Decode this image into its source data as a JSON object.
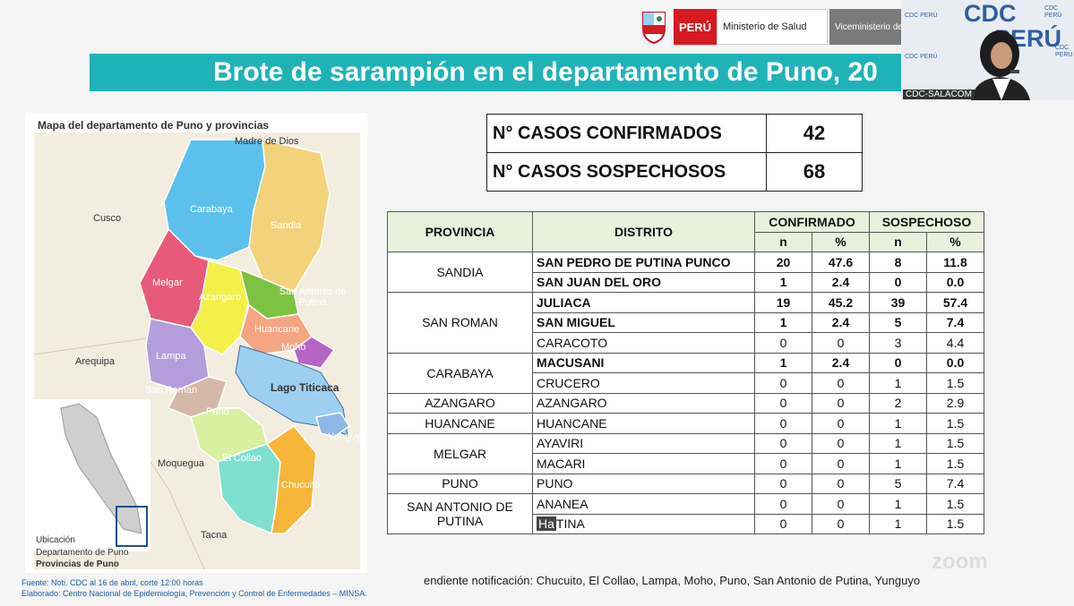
{
  "header": {
    "peru_label": "PERÚ",
    "ministry_label": "Ministerio de Salud",
    "vice_label": "Viceministerio de Salud Pública",
    "title": "Brote de sarampión en el departamento de Puno, 20"
  },
  "video": {
    "logo_line1": "CDC",
    "logo_line2": "PERÚ",
    "small_logo": "CDC PERÚ",
    "label": "CDC-SALACOM"
  },
  "map": {
    "title": "Mapa del departamento de Puno y provincias",
    "neighbors": [
      "Madre de Dios",
      "Cusco",
      "Arequipa",
      "Moquegua",
      "Tacna"
    ],
    "provinces": [
      "Carabaya",
      "Sandia",
      "Melgar",
      "Azangaro",
      "San Antonio de Putina",
      "Huancane",
      "Moho",
      "Lampa",
      "San Roman",
      "Puno",
      "El Collao",
      "Chucuito",
      "Yunguyo"
    ],
    "lake": "Lago Titicaca",
    "inset_caption": [
      "Ubicación",
      "Departamento de Puno"
    ],
    "inset_caption_bold": "Provincias de Puno",
    "colors": {
      "carabaya": "#5bc0eb",
      "sandia": "#f2d27a",
      "melgar": "#e85a7a",
      "azangaro": "#f3f04a",
      "putina": "#7dc242",
      "huancane": "#f4a582",
      "moho": "#b565c4",
      "lampa": "#b39ddb",
      "sanroman": "#d4b8a8",
      "puno": "#d9f0a3",
      "elcollao": "#7fe0d0",
      "chucuito": "#f7b63a",
      "yunguyo": "#8fb8e8",
      "lake": "#9ecff0"
    }
  },
  "counts": {
    "confirmed_label": "N° CASOS CONFIRMADOS",
    "confirmed_value": "42",
    "suspected_label": "N° CASOS SOSPECHOSOS",
    "suspected_value": "68"
  },
  "table": {
    "headers": {
      "provincia": "PROVINCIA",
      "distrito": "DISTRITO",
      "confirmado": "CONFIRMADO",
      "sospechoso": "SOSPECHOSO",
      "n": "n",
      "pct": "%"
    },
    "groups": [
      {
        "provincia": "SANDIA",
        "rows": [
          {
            "distrito": "SAN PEDRO DE PUTINA PUNCO",
            "cn": "20",
            "cp": "47.6",
            "sn": "8",
            "sp": "11.8",
            "bold": true
          },
          {
            "distrito": "SAN JUAN DEL ORO",
            "cn": "1",
            "cp": "2.4",
            "sn": "0",
            "sp": "0.0",
            "bold": true
          }
        ]
      },
      {
        "provincia": "SAN ROMAN",
        "rows": [
          {
            "distrito": "JULIACA",
            "cn": "19",
            "cp": "45.2",
            "sn": "39",
            "sp": "57.4",
            "bold": true
          },
          {
            "distrito": "SAN MIGUEL",
            "cn": "1",
            "cp": "2.4",
            "sn": "5",
            "sp": "7.4",
            "bold": true
          },
          {
            "distrito": "CARACOTO",
            "cn": "0",
            "cp": "0",
            "sn": "3",
            "sp": "4.4",
            "bold": false
          }
        ]
      },
      {
        "provincia": "CARABAYA",
        "rows": [
          {
            "distrito": "MACUSANI",
            "cn": "1",
            "cp": "2.4",
            "sn": "0",
            "sp": "0.0",
            "bold": true
          },
          {
            "distrito": "CRUCERO",
            "cn": "0",
            "cp": "0",
            "sn": "1",
            "sp": "1.5",
            "bold": false
          }
        ]
      },
      {
        "provincia": "AZANGARO",
        "rows": [
          {
            "distrito": "AZANGARO",
            "cn": "0",
            "cp": "0",
            "sn": "2",
            "sp": "2.9",
            "bold": false
          }
        ]
      },
      {
        "provincia": "HUANCANE",
        "rows": [
          {
            "distrito": "HUANCANE",
            "cn": "0",
            "cp": "0",
            "sn": "1",
            "sp": "1.5",
            "bold": false
          }
        ]
      },
      {
        "provincia": "MELGAR",
        "rows": [
          {
            "distrito": "AYAVIRI",
            "cn": "0",
            "cp": "0",
            "sn": "1",
            "sp": "1.5",
            "bold": false
          },
          {
            "distrito": "MACARI",
            "cn": "0",
            "cp": "0",
            "sn": "1",
            "sp": "1.5",
            "bold": false
          }
        ]
      },
      {
        "provincia": "PUNO",
        "rows": [
          {
            "distrito": "PUNO",
            "cn": "0",
            "cp": "0",
            "sn": "5",
            "sp": "7.4",
            "bold": false
          }
        ]
      },
      {
        "provincia": "SAN ANTONIO DE PUTINA",
        "rows": [
          {
            "distrito": "ANANEA",
            "cn": "0",
            "cp": "0",
            "sn": "1",
            "sp": "1.5",
            "bold": false
          },
          {
            "distrito_overlay": "Ha",
            "distrito": "TINA",
            "cn": "0",
            "cp": "0",
            "sn": "1",
            "sp": "1.5",
            "bold": false
          }
        ]
      }
    ]
  },
  "footer": {
    "note": "endiente notificación: Chucuito, El Collao, Lampa, Moho, Puno, San Antonio de Putina, Yunguyo",
    "fuente": "Fuente: Noti. CDC al 16 de abril, corte 12:00 horas",
    "elaborado": "Elaborado: Centro Nacional de Epidemiología, Prevención y Control de Enfermedades – MINSA.",
    "watermark": "zoom"
  }
}
